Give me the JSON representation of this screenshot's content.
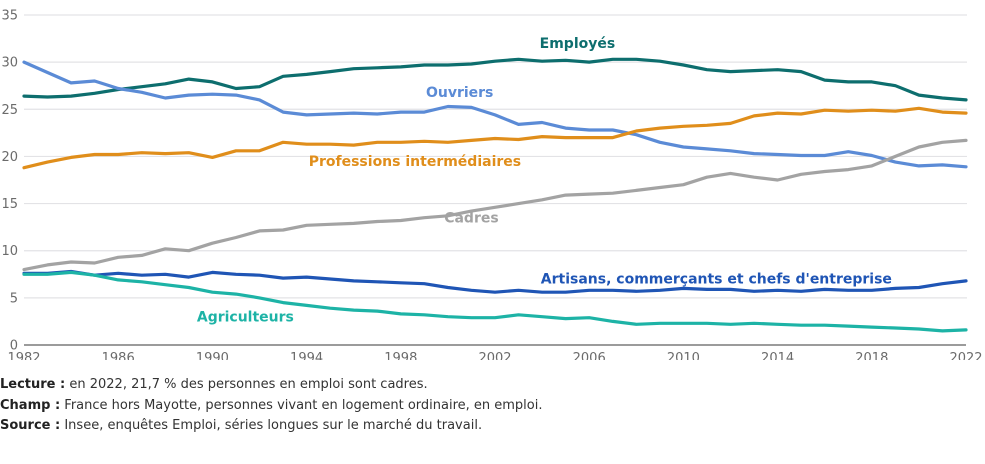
{
  "chart_data": {
    "type": "line",
    "title": "",
    "xlabel": "",
    "ylabel": "",
    "xlim": [
      1982,
      2022
    ],
    "ylim": [
      0,
      35
    ],
    "grid": true,
    "x_ticks": [
      1982,
      1986,
      1990,
      1994,
      1998,
      2002,
      2006,
      2010,
      2014,
      2018,
      2022
    ],
    "y_ticks": [
      0,
      5,
      10,
      15,
      20,
      25,
      30,
      35
    ],
    "x": [
      1982,
      1983,
      1984,
      1985,
      1986,
      1987,
      1988,
      1989,
      1990,
      1991,
      1992,
      1993,
      1994,
      1995,
      1996,
      1997,
      1998,
      1999,
      2000,
      2001,
      2002,
      2003,
      2004,
      2005,
      2006,
      2007,
      2008,
      2009,
      2010,
      2011,
      2012,
      2013,
      2014,
      2015,
      2016,
      2017,
      2018,
      2019,
      2020,
      2021,
      2022
    ],
    "series": [
      {
        "name": "Employés",
        "color": "#0d6e6e",
        "values": [
          26.4,
          26.3,
          26.4,
          26.7,
          27.1,
          27.4,
          27.7,
          28.2,
          27.9,
          27.2,
          27.4,
          28.5,
          28.7,
          29.0,
          29.3,
          29.4,
          29.5,
          29.7,
          29.7,
          29.8,
          30.1,
          30.3,
          30.1,
          30.2,
          30.0,
          30.3,
          30.3,
          30.1,
          29.7,
          29.2,
          29.0,
          29.1,
          29.2,
          29.0,
          28.1,
          27.9,
          27.9,
          27.5,
          26.5,
          26.2,
          26.0
        ]
      },
      {
        "name": "Ouvriers",
        "color": "#5b8bd6",
        "values": [
          30.0,
          28.9,
          27.8,
          28.0,
          27.2,
          26.8,
          26.2,
          26.5,
          26.6,
          26.5,
          26.0,
          24.7,
          24.4,
          24.5,
          24.6,
          24.5,
          24.7,
          24.7,
          25.3,
          25.2,
          24.4,
          23.4,
          23.6,
          23.0,
          22.8,
          22.8,
          22.3,
          21.5,
          21.0,
          20.8,
          20.6,
          20.3,
          20.2,
          20.1,
          20.1,
          20.5,
          20.1,
          19.4,
          19.0,
          19.1,
          18.9
        ]
      },
      {
        "name": "Professions intermédiaires",
        "color": "#e08e1b",
        "values": [
          18.8,
          19.4,
          19.9,
          20.2,
          20.2,
          20.4,
          20.3,
          20.4,
          19.9,
          20.6,
          20.6,
          21.5,
          21.3,
          21.3,
          21.2,
          21.5,
          21.5,
          21.6,
          21.5,
          21.7,
          21.9,
          21.8,
          22.1,
          22.0,
          22.0,
          22.0,
          22.7,
          23.0,
          23.2,
          23.3,
          23.5,
          24.3,
          24.6,
          24.5,
          24.9,
          24.8,
          24.9,
          24.8,
          25.1,
          24.7,
          24.6
        ]
      },
      {
        "name": "Cadres",
        "color": "#a3a3a3",
        "values": [
          8.0,
          8.5,
          8.8,
          8.7,
          9.3,
          9.5,
          10.2,
          10.0,
          10.8,
          11.4,
          12.1,
          12.2,
          12.7,
          12.8,
          12.9,
          13.1,
          13.2,
          13.5,
          13.7,
          14.2,
          14.6,
          15.0,
          15.4,
          15.9,
          16.0,
          16.1,
          16.4,
          16.7,
          17.0,
          17.8,
          18.2,
          17.8,
          17.5,
          18.1,
          18.4,
          18.6,
          19.0,
          20.0,
          21.0,
          21.5,
          21.7
        ]
      },
      {
        "name": "Artisans, commerçants et chefs d'entreprise",
        "color": "#1f55b5",
        "values": [
          7.6,
          7.6,
          7.8,
          7.4,
          7.6,
          7.4,
          7.5,
          7.2,
          7.7,
          7.5,
          7.4,
          7.1,
          7.2,
          7.0,
          6.8,
          6.7,
          6.6,
          6.5,
          6.1,
          5.8,
          5.6,
          5.8,
          5.6,
          5.6,
          5.8,
          5.8,
          5.7,
          5.8,
          6.0,
          5.9,
          5.9,
          5.7,
          5.8,
          5.7,
          5.9,
          5.8,
          5.8,
          6.0,
          6.1,
          6.5,
          6.8
        ]
      },
      {
        "name": "Agriculteurs",
        "color": "#1db3a6",
        "values": [
          7.5,
          7.5,
          7.7,
          7.4,
          6.9,
          6.7,
          6.4,
          6.1,
          5.6,
          5.4,
          5.0,
          4.5,
          4.2,
          3.9,
          3.7,
          3.6,
          3.3,
          3.2,
          3.0,
          2.9,
          2.9,
          3.2,
          3.0,
          2.8,
          2.9,
          2.5,
          2.2,
          2.3,
          2.3,
          2.3,
          2.2,
          2.3,
          2.2,
          2.1,
          2.1,
          2.0,
          1.9,
          1.8,
          1.7,
          1.5,
          1.6
        ]
      }
    ],
    "annotations": [
      {
        "series": 0,
        "text": "Employés",
        "x": 2005.5,
        "y": 31.5
      },
      {
        "series": 1,
        "text": "Ouvriers",
        "x": 2000.5,
        "y": 26.3
      },
      {
        "series": 2,
        "text": "Professions intermédiaires",
        "x": 1998.6,
        "y": 19.0
      },
      {
        "series": 3,
        "text": "Cadres",
        "x": 2001.0,
        "y": 13.0
      },
      {
        "series": 4,
        "text": "Artisans, commerçants et chefs d'entreprise",
        "x": 2011.4,
        "y": 6.5
      },
      {
        "series": 5,
        "text": "Agriculteurs",
        "x": 1991.4,
        "y": 2.5
      }
    ]
  },
  "notes": {
    "lecture_label": "Lecture :",
    "lecture_text": " en 2022, 21,7 % des personnes en emploi sont cadres.",
    "champ_label": "Champ :",
    "champ_text": " France hors Mayotte, personnes vivant en logement ordinaire, en emploi.",
    "source_label": "Source :",
    "source_text": " Insee, enquêtes Emploi, séries longues sur le marché du travail."
  }
}
